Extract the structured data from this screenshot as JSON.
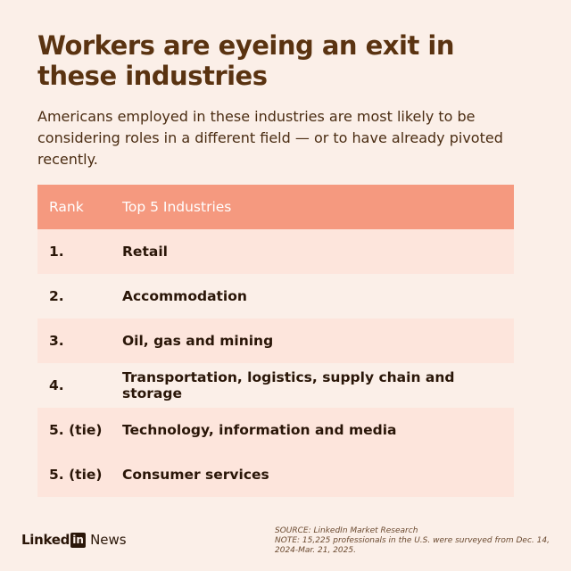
{
  "title": "Workers are eyeing an exit in these industries",
  "subtitle": "Americans employed in these industries are most likely to be considering roles in a different field — or to have already pivoted recently.",
  "colors": {
    "background": "#fbefe8",
    "header": "#f5997f",
    "row_alt": "#fde5dc",
    "title": "#5a3311"
  },
  "chart_data": {
    "type": "table",
    "columns": [
      "Rank",
      "Top 5 Industries"
    ],
    "rows": [
      [
        "1.",
        "Retail"
      ],
      [
        "2.",
        "Accommodation"
      ],
      [
        "3.",
        "Oil, gas and mining"
      ],
      [
        "4.",
        "Transportation, logistics, supply chain and storage"
      ],
      [
        "5. (tie)",
        "Technology, information and media"
      ],
      [
        "5. (tie)",
        "Consumer services"
      ]
    ]
  },
  "footer": {
    "brand_linked": "Linked",
    "brand_in": "in",
    "brand_news": "News",
    "source": "SOURCE: LinkedIn Market Research",
    "note": "NOTE: 15,225 professionals in the U.S. were surveyed from Dec. 14, 2024-Mar. 21, 2025."
  }
}
